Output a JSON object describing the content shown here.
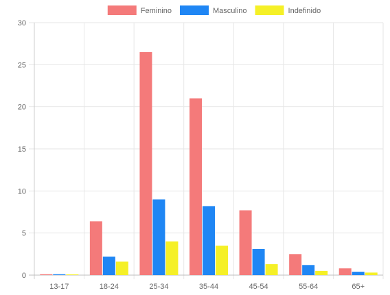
{
  "chart_data": {
    "type": "bar",
    "categories": [
      "13-17",
      "18-24",
      "25-34",
      "35-44",
      "45-54",
      "55-64",
      "65+"
    ],
    "series": [
      {
        "name": "Feminino",
        "color": "#f47a7a",
        "values": [
          0.1,
          6.4,
          26.5,
          21.0,
          7.7,
          2.5,
          0.8
        ]
      },
      {
        "name": "Masculino",
        "color": "#1f86f4",
        "values": [
          0.1,
          2.2,
          9.0,
          8.2,
          3.1,
          1.2,
          0.4
        ]
      },
      {
        "name": "Indefinido",
        "color": "#f5f027",
        "values": [
          0.05,
          1.6,
          4.0,
          3.5,
          1.3,
          0.5,
          0.3
        ]
      }
    ],
    "yticks": [
      0,
      5,
      10,
      15,
      20,
      25,
      30
    ],
    "ylim": [
      0,
      30
    ],
    "grid": true,
    "legend_position": "top"
  }
}
